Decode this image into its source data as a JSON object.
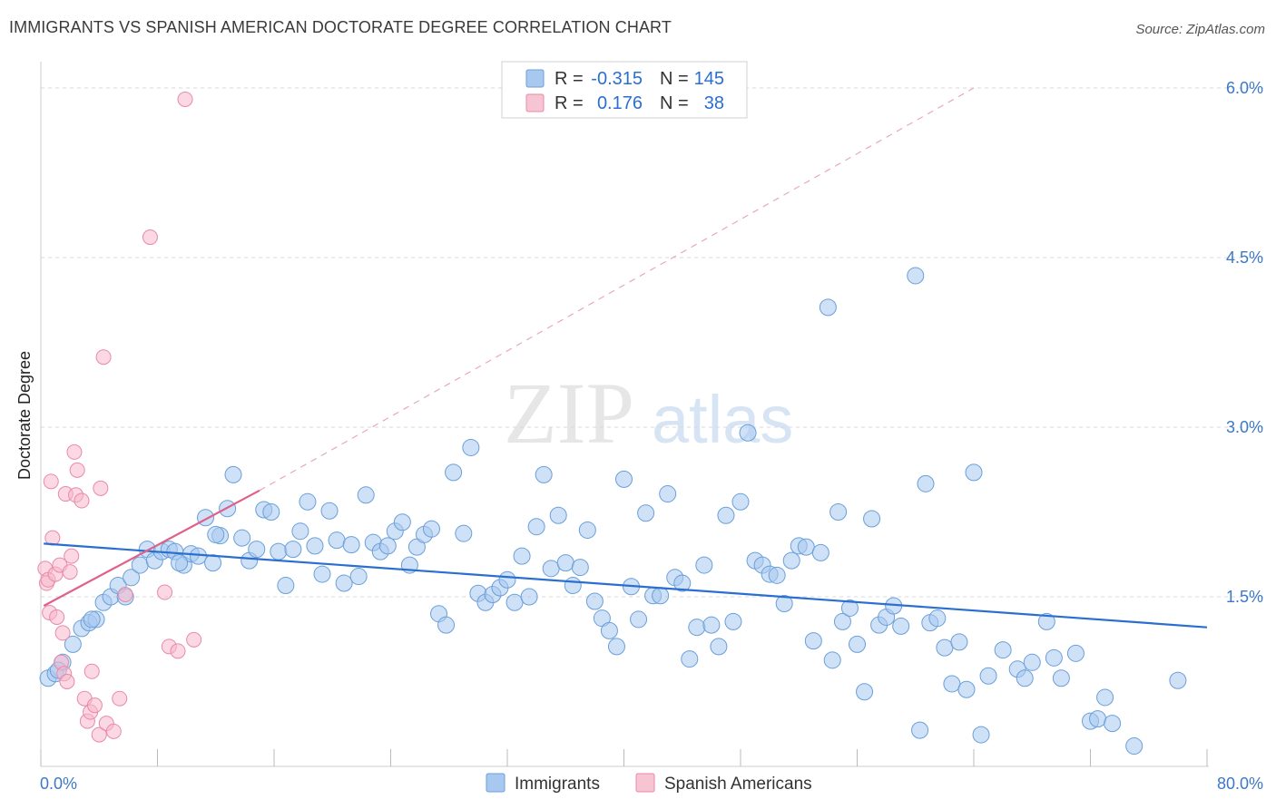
{
  "title": "IMMIGRANTS VS SPANISH AMERICAN DOCTORATE DEGREE CORRELATION CHART",
  "source": "Source: ZipAtlas.com",
  "watermark": {
    "zip": "ZIP",
    "atlas": "atlas"
  },
  "colors": {
    "blue_fill": "#a8c8f0",
    "blue_stroke": "#6a9fd8",
    "blue_line": "#2a6fd0",
    "pink_fill": "#f7b8cc",
    "pink_stroke": "#e88aa8",
    "pink_line": "#e0608a",
    "tick_text": "#3c78c8",
    "grid": "#d8d8d8"
  },
  "legend": {
    "rows": [
      {
        "r_label": "R =",
        "r_value": "-0.315",
        "n_label": "N =",
        "n_value": "145",
        "color": "blue"
      },
      {
        "r_label": "R =",
        "r_value": "0.176",
        "n_label": "N =",
        "n_value": "38",
        "color": "pink"
      }
    ]
  },
  "bottom_legend": [
    "Immigrants",
    "Spanish Americans"
  ],
  "chart_data": {
    "type": "scatter",
    "xlabel": "",
    "ylabel": "Doctorate Degree",
    "xlim": [
      0,
      80
    ],
    "ylim": [
      0,
      6.2
    ],
    "x_tick_labels": [
      "0.0%",
      "80.0%"
    ],
    "y_ticks": [
      1.5,
      3.0,
      4.5,
      6.0
    ],
    "y_tick_labels": [
      "1.5%",
      "3.0%",
      "4.5%",
      "6.0%"
    ],
    "grid": true,
    "legend_position": "top-center",
    "series": [
      {
        "name": "Immigrants",
        "color": "blue",
        "trend": {
          "x0": 0.2,
          "y0": 1.97,
          "x1": 80.0,
          "y1": 1.23
        },
        "points": [
          [
            0.5,
            0.78
          ],
          [
            1.0,
            0.82
          ],
          [
            1.5,
            0.92
          ],
          [
            2.2,
            1.08
          ],
          [
            2.8,
            1.22
          ],
          [
            3.3,
            1.27
          ],
          [
            3.8,
            1.3
          ],
          [
            4.3,
            1.45
          ],
          [
            4.8,
            1.5
          ],
          [
            5.3,
            1.6
          ],
          [
            5.8,
            1.5
          ],
          [
            6.2,
            1.67
          ],
          [
            6.8,
            1.78
          ],
          [
            7.3,
            1.92
          ],
          [
            7.8,
            1.82
          ],
          [
            8.3,
            1.9
          ],
          [
            8.8,
            1.92
          ],
          [
            9.2,
            1.9
          ],
          [
            9.8,
            1.78
          ],
          [
            10.3,
            1.88
          ],
          [
            10.8,
            1.86
          ],
          [
            11.3,
            2.2
          ],
          [
            11.8,
            1.8
          ],
          [
            12.3,
            2.04
          ],
          [
            12.8,
            2.28
          ],
          [
            13.2,
            2.58
          ],
          [
            13.8,
            2.02
          ],
          [
            14.3,
            1.82
          ],
          [
            14.8,
            1.92
          ],
          [
            15.3,
            2.27
          ],
          [
            15.8,
            2.25
          ],
          [
            16.3,
            1.9
          ],
          [
            16.8,
            1.6
          ],
          [
            17.3,
            1.92
          ],
          [
            17.8,
            2.08
          ],
          [
            18.3,
            2.34
          ],
          [
            18.8,
            1.95
          ],
          [
            19.3,
            1.7
          ],
          [
            19.8,
            2.26
          ],
          [
            20.3,
            2.0
          ],
          [
            20.8,
            1.62
          ],
          [
            21.3,
            1.96
          ],
          [
            21.8,
            1.68
          ],
          [
            22.3,
            2.4
          ],
          [
            22.8,
            1.98
          ],
          [
            23.3,
            1.9
          ],
          [
            23.8,
            1.95
          ],
          [
            24.3,
            2.08
          ],
          [
            24.8,
            2.16
          ],
          [
            25.3,
            1.78
          ],
          [
            25.8,
            1.94
          ],
          [
            26.3,
            2.05
          ],
          [
            26.8,
            2.1
          ],
          [
            27.3,
            1.35
          ],
          [
            27.8,
            1.25
          ],
          [
            28.3,
            2.6
          ],
          [
            29.0,
            2.06
          ],
          [
            29.5,
            2.82
          ],
          [
            30.0,
            1.53
          ],
          [
            30.5,
            1.45
          ],
          [
            31.0,
            1.52
          ],
          [
            31.5,
            1.58
          ],
          [
            32.0,
            1.65
          ],
          [
            32.5,
            1.45
          ],
          [
            33.0,
            1.86
          ],
          [
            33.5,
            1.5
          ],
          [
            34.0,
            2.12
          ],
          [
            34.5,
            2.58
          ],
          [
            35.0,
            1.75
          ],
          [
            35.5,
            2.22
          ],
          [
            36.0,
            1.8
          ],
          [
            36.5,
            1.6
          ],
          [
            37.0,
            1.76
          ],
          [
            37.5,
            2.09
          ],
          [
            38.0,
            1.46
          ],
          [
            38.5,
            1.31
          ],
          [
            39.0,
            1.2
          ],
          [
            39.5,
            1.06
          ],
          [
            40.0,
            2.54
          ],
          [
            40.5,
            1.59
          ],
          [
            41.0,
            1.3
          ],
          [
            41.5,
            2.24
          ],
          [
            42.0,
            1.51
          ],
          [
            42.5,
            1.51
          ],
          [
            43.0,
            2.41
          ],
          [
            43.5,
            1.67
          ],
          [
            44.0,
            1.62
          ],
          [
            44.5,
            0.95
          ],
          [
            45.0,
            1.23
          ],
          [
            45.5,
            1.78
          ],
          [
            46.0,
            1.25
          ],
          [
            46.5,
            1.06
          ],
          [
            47.0,
            2.22
          ],
          [
            47.5,
            1.28
          ],
          [
            48.0,
            2.34
          ],
          [
            48.5,
            2.95
          ],
          [
            49.0,
            1.82
          ],
          [
            49.5,
            1.78
          ],
          [
            50.0,
            1.7
          ],
          [
            50.5,
            1.69
          ],
          [
            51.0,
            1.44
          ],
          [
            51.5,
            1.82
          ],
          [
            52.0,
            1.95
          ],
          [
            52.5,
            1.94
          ],
          [
            53.0,
            1.11
          ],
          [
            53.5,
            1.89
          ],
          [
            54.0,
            4.06
          ],
          [
            54.3,
            0.94
          ],
          [
            54.7,
            2.25
          ],
          [
            55.0,
            1.28
          ],
          [
            55.5,
            1.4
          ],
          [
            56.0,
            1.08
          ],
          [
            56.5,
            0.66
          ],
          [
            57.0,
            2.19
          ],
          [
            57.5,
            1.25
          ],
          [
            58.0,
            1.32
          ],
          [
            58.5,
            1.42
          ],
          [
            59.0,
            1.24
          ],
          [
            60.0,
            4.34
          ],
          [
            60.3,
            0.32
          ],
          [
            60.7,
            2.5
          ],
          [
            61.0,
            1.27
          ],
          [
            61.5,
            1.31
          ],
          [
            62.0,
            1.05
          ],
          [
            62.5,
            0.73
          ],
          [
            63.0,
            1.1
          ],
          [
            63.5,
            0.68
          ],
          [
            64.0,
            2.6
          ],
          [
            64.5,
            0.28
          ],
          [
            65.0,
            0.8
          ],
          [
            66.0,
            1.03
          ],
          [
            67.0,
            0.86
          ],
          [
            67.5,
            0.78
          ],
          [
            68.0,
            0.92
          ],
          [
            69.0,
            1.28
          ],
          [
            69.5,
            0.96
          ],
          [
            70.0,
            0.78
          ],
          [
            71.0,
            1.0
          ],
          [
            72.0,
            0.4
          ],
          [
            72.5,
            0.42
          ],
          [
            73.0,
            0.61
          ],
          [
            73.5,
            0.38
          ],
          [
            75.0,
            0.18
          ],
          [
            78.0,
            0.76
          ],
          [
            1.2,
            0.85
          ],
          [
            3.5,
            1.3
          ],
          [
            9.5,
            1.8
          ],
          [
            12.0,
            2.05
          ]
        ]
      },
      {
        "name": "Spanish Americans",
        "color": "pink",
        "trend": {
          "x0": 0.2,
          "y0": 1.42,
          "x1": 15.0,
          "y1": 2.44
        },
        "extension": {
          "x0": 15.0,
          "y0": 2.44,
          "x1": 64.0,
          "y1": 6.0
        },
        "points": [
          [
            0.3,
            1.75
          ],
          [
            0.4,
            1.62
          ],
          [
            0.5,
            1.65
          ],
          [
            0.6,
            1.36
          ],
          [
            0.7,
            2.52
          ],
          [
            0.8,
            2.02
          ],
          [
            1.0,
            1.7
          ],
          [
            1.1,
            1.32
          ],
          [
            1.3,
            1.78
          ],
          [
            1.4,
            0.92
          ],
          [
            1.5,
            1.18
          ],
          [
            1.6,
            0.82
          ],
          [
            1.7,
            2.41
          ],
          [
            1.8,
            0.75
          ],
          [
            2.0,
            1.72
          ],
          [
            2.1,
            1.86
          ],
          [
            2.3,
            2.78
          ],
          [
            2.4,
            2.4
          ],
          [
            2.5,
            2.62
          ],
          [
            2.8,
            2.35
          ],
          [
            3.0,
            0.6
          ],
          [
            3.2,
            0.4
          ],
          [
            3.4,
            0.48
          ],
          [
            3.5,
            0.84
          ],
          [
            3.7,
            0.54
          ],
          [
            4.0,
            0.28
          ],
          [
            4.1,
            2.46
          ],
          [
            4.3,
            3.62
          ],
          [
            4.5,
            0.38
          ],
          [
            5.0,
            0.31
          ],
          [
            5.4,
            0.6
          ],
          [
            5.8,
            1.52
          ],
          [
            7.5,
            4.68
          ],
          [
            8.5,
            1.54
          ],
          [
            8.8,
            1.06
          ],
          [
            9.4,
            1.02
          ],
          [
            9.9,
            5.9
          ],
          [
            10.5,
            1.12
          ]
        ]
      }
    ]
  }
}
